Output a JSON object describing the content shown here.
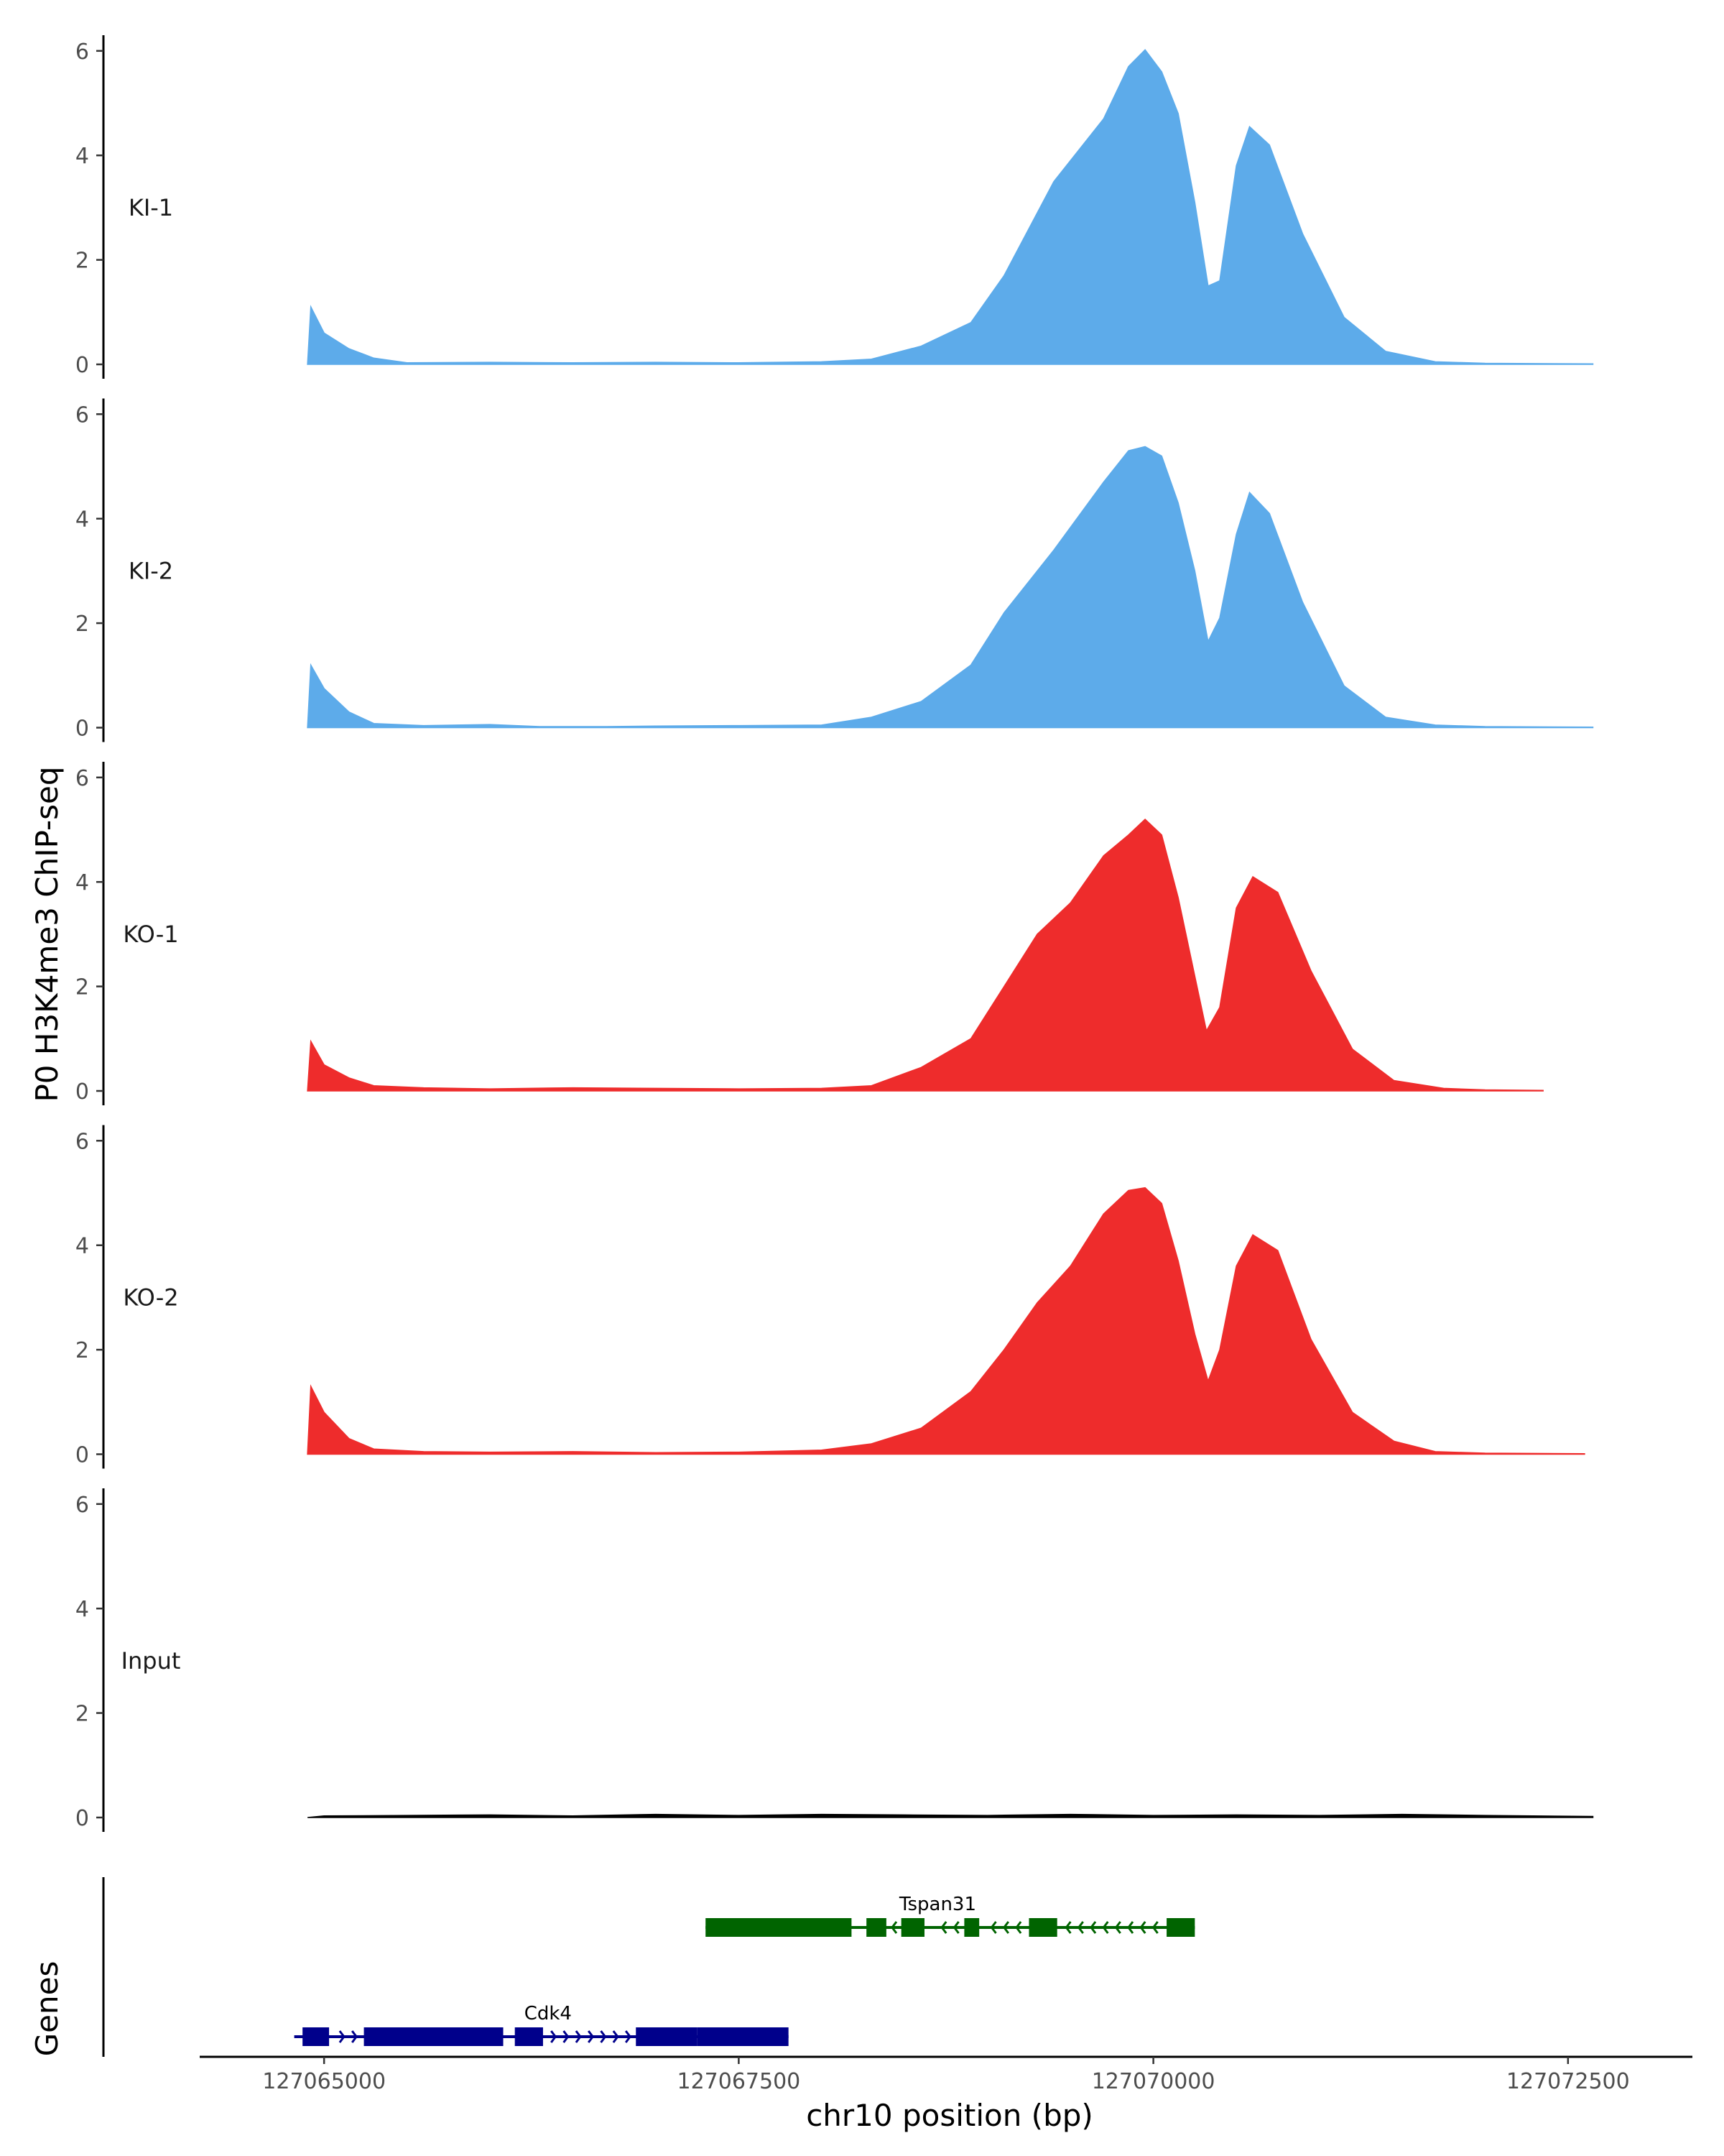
{
  "chart_data": {
    "type": "area",
    "xlabel": "chr10 position (bp)",
    "ylabel": "P0 H3K4me3 ChIP-seq",
    "genes_label": "Genes",
    "xlim": [
      127064250,
      127073250
    ],
    "x_ticks": [
      127065000,
      127067500,
      127070000,
      127072500
    ],
    "x_tick_labels": [
      "127065000",
      "127067500",
      "127070000",
      "127072500"
    ],
    "ylim": [
      0,
      6.3
    ],
    "y_ticks": [
      0,
      2,
      4,
      6
    ],
    "y_tick_labels": [
      "0",
      "2",
      "4",
      "6"
    ],
    "x_start": 127064900,
    "x_end": 127072650,
    "tracks": [
      {
        "label": "KI-1",
        "color": "#5DABEA",
        "points": [
          [
            127064900,
            0
          ],
          [
            127064920,
            1.1
          ],
          [
            127065000,
            0.6
          ],
          [
            127065150,
            0.3
          ],
          [
            127065300,
            0.12
          ],
          [
            127065500,
            0.03
          ],
          [
            127066000,
            0.04
          ],
          [
            127066500,
            0.03
          ],
          [
            127067000,
            0.04
          ],
          [
            127067500,
            0.03
          ],
          [
            127068000,
            0.05
          ],
          [
            127068300,
            0.1
          ],
          [
            127068600,
            0.35
          ],
          [
            127068900,
            0.8
          ],
          [
            127069100,
            1.7
          ],
          [
            127069400,
            3.5
          ],
          [
            127069700,
            4.7
          ],
          [
            127069850,
            5.7
          ],
          [
            127069950,
            6.02
          ],
          [
            127070050,
            5.6
          ],
          [
            127070150,
            4.8
          ],
          [
            127070250,
            3.1
          ],
          [
            127070330,
            1.5
          ],
          [
            127070400,
            1.6
          ],
          [
            127070500,
            3.8
          ],
          [
            127070580,
            4.55
          ],
          [
            127070700,
            4.2
          ],
          [
            127070900,
            2.5
          ],
          [
            127071150,
            0.9
          ],
          [
            127071400,
            0.25
          ],
          [
            127071700,
            0.05
          ],
          [
            127072000,
            0.02
          ],
          [
            127072650,
            0.01
          ]
        ]
      },
      {
        "label": "KI-2",
        "color": "#5DABEA",
        "points": [
          [
            127064900,
            0
          ],
          [
            127064920,
            1.2
          ],
          [
            127065000,
            0.75
          ],
          [
            127065150,
            0.3
          ],
          [
            127065300,
            0.08
          ],
          [
            127065600,
            0.04
          ],
          [
            127066000,
            0.06
          ],
          [
            127066300,
            0.02
          ],
          [
            127066700,
            0.02
          ],
          [
            127067000,
            0.03
          ],
          [
            127067500,
            0.04
          ],
          [
            127068000,
            0.05
          ],
          [
            127068300,
            0.2
          ],
          [
            127068600,
            0.5
          ],
          [
            127068900,
            1.2
          ],
          [
            127069100,
            2.2
          ],
          [
            127069400,
            3.4
          ],
          [
            127069700,
            4.7
          ],
          [
            127069850,
            5.3
          ],
          [
            127069950,
            5.38
          ],
          [
            127070050,
            5.2
          ],
          [
            127070150,
            4.3
          ],
          [
            127070250,
            3.0
          ],
          [
            127070330,
            1.65
          ],
          [
            127070400,
            2.1
          ],
          [
            127070500,
            3.7
          ],
          [
            127070580,
            4.5
          ],
          [
            127070700,
            4.1
          ],
          [
            127070900,
            2.4
          ],
          [
            127071150,
            0.8
          ],
          [
            127071400,
            0.2
          ],
          [
            127071700,
            0.05
          ],
          [
            127072000,
            0.02
          ],
          [
            127072650,
            0.01
          ]
        ]
      },
      {
        "label": "KO-1",
        "color": "#EE2C2C",
        "points": [
          [
            127064900,
            0
          ],
          [
            127064920,
            0.95
          ],
          [
            127065000,
            0.5
          ],
          [
            127065150,
            0.25
          ],
          [
            127065300,
            0.1
          ],
          [
            127065600,
            0.06
          ],
          [
            127066000,
            0.04
          ],
          [
            127066500,
            0.06
          ],
          [
            127067000,
            0.05
          ],
          [
            127067500,
            0.04
          ],
          [
            127068000,
            0.05
          ],
          [
            127068300,
            0.1
          ],
          [
            127068600,
            0.45
          ],
          [
            127068900,
            1.0
          ],
          [
            127069100,
            2.0
          ],
          [
            127069300,
            3.0
          ],
          [
            127069500,
            3.6
          ],
          [
            127069700,
            4.5
          ],
          [
            127069850,
            4.9
          ],
          [
            127069950,
            5.2
          ],
          [
            127070050,
            4.9
          ],
          [
            127070150,
            3.7
          ],
          [
            127070250,
            2.2
          ],
          [
            127070320,
            1.15
          ],
          [
            127070400,
            1.6
          ],
          [
            127070500,
            3.5
          ],
          [
            127070600,
            4.1
          ],
          [
            127070750,
            3.8
          ],
          [
            127070950,
            2.3
          ],
          [
            127071200,
            0.8
          ],
          [
            127071450,
            0.2
          ],
          [
            127071750,
            0.05
          ],
          [
            127072000,
            0.02
          ],
          [
            127072350,
            0.01
          ]
        ]
      },
      {
        "label": "KO-2",
        "color": "#EE2C2C",
        "points": [
          [
            127064900,
            0
          ],
          [
            127064920,
            1.3
          ],
          [
            127065000,
            0.8
          ],
          [
            127065150,
            0.3
          ],
          [
            127065300,
            0.1
          ],
          [
            127065600,
            0.05
          ],
          [
            127066000,
            0.04
          ],
          [
            127066500,
            0.05
          ],
          [
            127067000,
            0.03
          ],
          [
            127067500,
            0.04
          ],
          [
            127068000,
            0.08
          ],
          [
            127068300,
            0.2
          ],
          [
            127068600,
            0.5
          ],
          [
            127068900,
            1.2
          ],
          [
            127069100,
            2.0
          ],
          [
            127069300,
            2.9
          ],
          [
            127069500,
            3.6
          ],
          [
            127069700,
            4.6
          ],
          [
            127069850,
            5.05
          ],
          [
            127069950,
            5.1
          ],
          [
            127070050,
            4.8
          ],
          [
            127070150,
            3.7
          ],
          [
            127070250,
            2.3
          ],
          [
            127070330,
            1.4
          ],
          [
            127070400,
            2.0
          ],
          [
            127070500,
            3.6
          ],
          [
            127070600,
            4.2
          ],
          [
            127070750,
            3.9
          ],
          [
            127070950,
            2.2
          ],
          [
            127071200,
            0.8
          ],
          [
            127071450,
            0.25
          ],
          [
            127071700,
            0.05
          ],
          [
            127072000,
            0.02
          ],
          [
            127072600,
            0.01
          ]
        ]
      },
      {
        "label": "Input",
        "color": "#000000",
        "points": [
          [
            127064900,
            0
          ],
          [
            127065000,
            0.03
          ],
          [
            127065500,
            0.04
          ],
          [
            127066000,
            0.05
          ],
          [
            127066500,
            0.03
          ],
          [
            127067000,
            0.06
          ],
          [
            127067500,
            0.04
          ],
          [
            127068000,
            0.06
          ],
          [
            127068500,
            0.05
          ],
          [
            127069000,
            0.04
          ],
          [
            127069500,
            0.06
          ],
          [
            127070000,
            0.04
          ],
          [
            127070500,
            0.05
          ],
          [
            127071000,
            0.04
          ],
          [
            127071500,
            0.06
          ],
          [
            127072000,
            0.04
          ],
          [
            127072650,
            0.02
          ]
        ]
      }
    ],
    "genes": [
      {
        "name": "Tspan31",
        "color": "#006400",
        "row": 0,
        "strand": "-",
        "line": [
          127067300,
          127070250
        ],
        "exons": [
          [
            127067300,
            127068180
          ],
          [
            127068270,
            127068390
          ],
          [
            127068480,
            127068620
          ],
          [
            127068860,
            127068950
          ],
          [
            127069250,
            127069420
          ],
          [
            127070080,
            127070250
          ]
        ],
        "label_x": 127068700
      },
      {
        "name": "Cdk4",
        "color": "#00008B",
        "row": 1,
        "strand": "+",
        "line": [
          127064820,
          127067800
        ],
        "exons": [
          [
            127064870,
            127065030
          ],
          [
            127065240,
            127066080
          ],
          [
            127066150,
            127066320
          ],
          [
            127066880,
            127067250
          ],
          [
            127067250,
            127067800
          ]
        ],
        "label_x": 127066350
      }
    ]
  }
}
